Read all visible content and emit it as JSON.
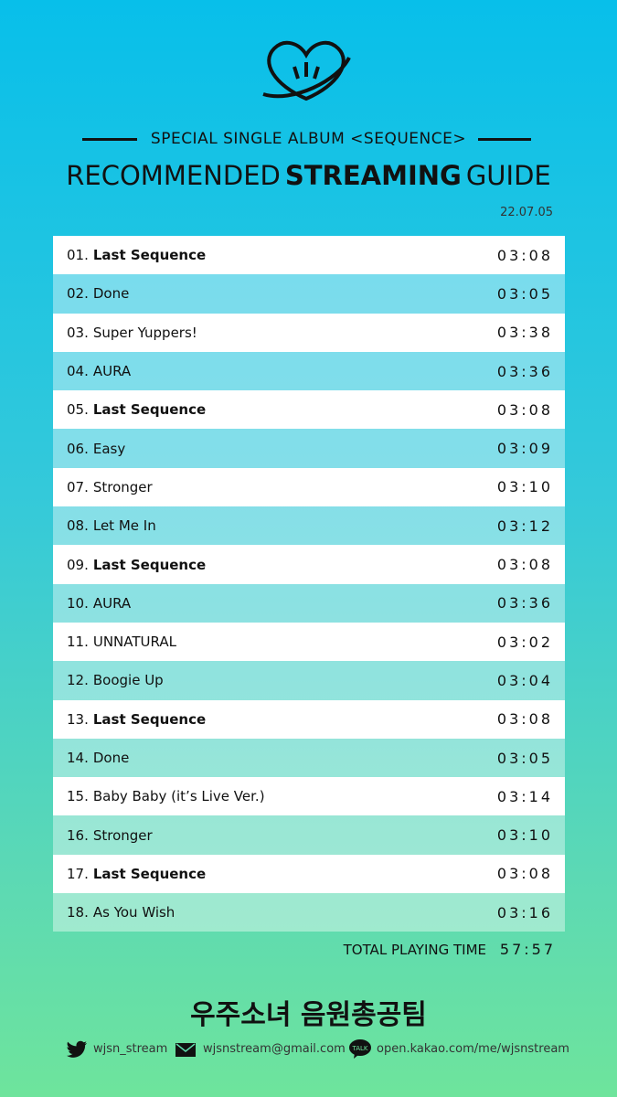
{
  "header": {
    "subtitle": "SPECIAL SINGLE ALBUM <SEQUENCE>",
    "title": [
      "RECOMMENDED",
      "STREAMING",
      "GUIDE"
    ],
    "date": "22.07.05"
  },
  "tracks": [
    {
      "number": "01.",
      "title": "Last Sequence",
      "duration": "03:08",
      "bold": true
    },
    {
      "number": "02.",
      "title": "Done",
      "duration": "03:05"
    },
    {
      "number": "03.",
      "title": "Super Yuppers!",
      "duration": "03:38"
    },
    {
      "number": "04.",
      "title": "AURA",
      "duration": "03:36"
    },
    {
      "number": "05.",
      "title": "Last Sequence",
      "duration": "03:08",
      "bold": true
    },
    {
      "number": "06.",
      "title": "Easy",
      "duration": "03:09"
    },
    {
      "number": "07.",
      "title": "Stronger",
      "duration": "03:10"
    },
    {
      "number": "08.",
      "title": "Let Me In",
      "duration": "03:12"
    },
    {
      "number": "09.",
      "title": "Last Sequence",
      "duration": "03:08",
      "bold": true
    },
    {
      "number": "10.",
      "title": "AURA",
      "duration": "03:36"
    },
    {
      "number": "11.",
      "title": "UNNATURAL",
      "duration": "03:02"
    },
    {
      "number": "12.",
      "title": "Boogie Up",
      "duration": "03:04"
    },
    {
      "number": "13.",
      "title": "Last Sequence",
      "duration": "03:08",
      "bold": true
    },
    {
      "number": "14.",
      "title": "Done",
      "duration": "03:05"
    },
    {
      "number": "15.",
      "title": "Baby Baby (it’s Live Ver.)",
      "duration": "03:14"
    },
    {
      "number": "16.",
      "title": "Stronger",
      "duration": "03:10"
    },
    {
      "number": "17.",
      "title": "Last Sequence",
      "duration": "03:08",
      "bold": true
    },
    {
      "number": "18.",
      "title": "As You Wish",
      "duration": "03:16"
    }
  ],
  "total": {
    "label": "TOTAL PLAYING TIME",
    "value": "57:57"
  },
  "footer": {
    "team": "우주소녀 음원총공팀",
    "twitter": "wjsn_stream",
    "email": "wjsnstream@gmail.com",
    "kakao": "open.kakao.com/me/wjsnstream"
  }
}
